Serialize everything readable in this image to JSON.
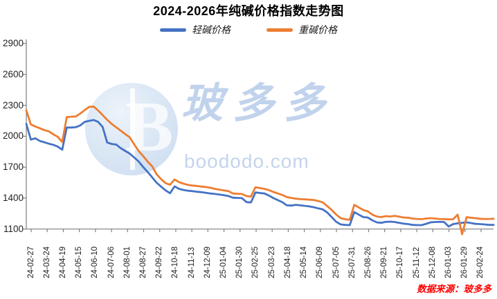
{
  "title": "2024-2026年纯碱价格指数走势图",
  "legend": [
    {
      "label": "轻碱价格",
      "color": "#4472C4"
    },
    {
      "label": "重碱价格",
      "color": "#ED7D31"
    }
  ],
  "watermark": {
    "cn": "玻多多",
    "en": "boododo.com",
    "logo_letter": "B"
  },
  "source_note": "数据来源：玻多多",
  "colors": {
    "axis": "#7f7f7f",
    "tick_label": "#1f1f1f",
    "source_red": "#ff0000"
  },
  "chart_data": {
    "type": "line",
    "title": "2024-2026年纯碱价格指数走势图",
    "ylim": [
      1100,
      2900
    ],
    "ytick_step": 300,
    "yticks": [
      2900,
      2600,
      2300,
      2000,
      1700,
      1400,
      1100
    ],
    "grid": false,
    "legend_position": "top",
    "x_labels": [
      "24-02-27",
      "24-03-24",
      "24-04-19",
      "24-05-15",
      "24-06-10",
      "24-07-06",
      "24-08-01",
      "24-08-27",
      "24-09-22",
      "24-10-18",
      "24-11-13",
      "24-12-09",
      "25-01-04",
      "25-01-30",
      "25-02-25",
      "25-03-23",
      "25-04-18",
      "25-05-14",
      "25-06-09",
      "25-07-05",
      "25-07-31",
      "25-08-26",
      "25-09-21",
      "25-10-17",
      "25-11-12",
      "25-12-08",
      "26-01-03",
      "26-01-29",
      "26-02-24"
    ],
    "x_note": "weekly index points from 24-02-27 to 26-02-24",
    "series": [
      {
        "name": "轻碱价格",
        "color": "#4472C4",
        "values": [
          2120,
          1968,
          1980,
          1955,
          1942,
          1928,
          1917,
          1900,
          1870,
          2085,
          2085,
          2088,
          2105,
          2140,
          2150,
          2158,
          2140,
          2090,
          1940,
          1925,
          1920,
          1885,
          1858,
          1832,
          1795,
          1755,
          1702,
          1655,
          1603,
          1550,
          1512,
          1475,
          1448,
          1514,
          1490,
          1479,
          1472,
          1468,
          1462,
          1458,
          1452,
          1445,
          1440,
          1434,
          1428,
          1420,
          1404,
          1402,
          1400,
          1362,
          1358,
          1455,
          1450,
          1445,
          1425,
          1400,
          1380,
          1360,
          1330,
          1328,
          1335,
          1330,
          1325,
          1320,
          1312,
          1300,
          1290,
          1260,
          1215,
          1170,
          1145,
          1140,
          1138,
          1265,
          1240,
          1216,
          1212,
          1185,
          1165,
          1160,
          1170,
          1172,
          1168,
          1160,
          1152,
          1148,
          1140,
          1138,
          1138,
          1150,
          1165,
          1168,
          1170,
          1168,
          1125,
          1148,
          1155,
          1160,
          1165,
          1158,
          1150,
          1148,
          1145,
          1140,
          1140
        ]
      },
      {
        "name": "重碱价格",
        "color": "#ED7D31",
        "values": [
          2252,
          2115,
          2095,
          2078,
          2060,
          2048,
          2020,
          1995,
          1945,
          2185,
          2190,
          2192,
          2220,
          2255,
          2285,
          2288,
          2250,
          2205,
          2160,
          2120,
          2088,
          2055,
          2022,
          1990,
          1922,
          1857,
          1808,
          1755,
          1710,
          1632,
          1585,
          1545,
          1530,
          1581,
          1555,
          1540,
          1528,
          1522,
          1518,
          1512,
          1508,
          1500,
          1490,
          1482,
          1475,
          1468,
          1445,
          1442,
          1440,
          1420,
          1415,
          1505,
          1498,
          1490,
          1478,
          1460,
          1445,
          1430,
          1410,
          1402,
          1395,
          1390,
          1388,
          1385,
          1382,
          1372,
          1358,
          1322,
          1285,
          1240,
          1205,
          1195,
          1190,
          1335,
          1310,
          1285,
          1272,
          1240,
          1222,
          1216,
          1225,
          1222,
          1228,
          1220,
          1212,
          1210,
          1202,
          1198,
          1196,
          1202,
          1206,
          1202,
          1198,
          1196,
          1194,
          1195,
          1240,
          1050,
          1215,
          1210,
          1205,
          1200,
          1198,
          1198,
          1200
        ]
      }
    ]
  }
}
